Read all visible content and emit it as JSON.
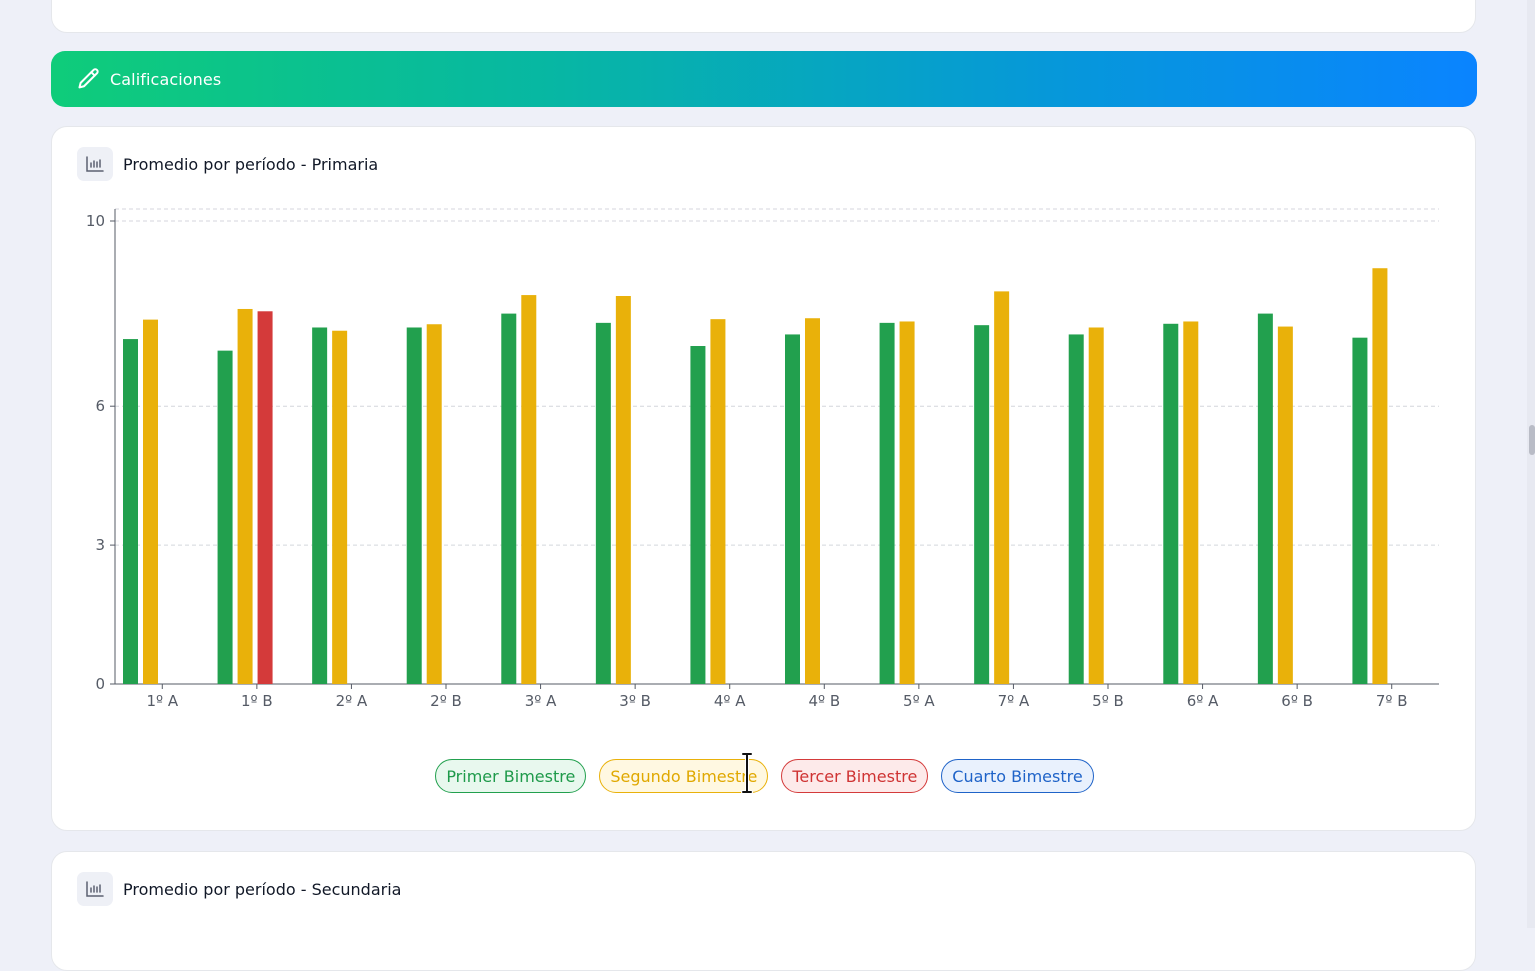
{
  "banner": {
    "title": "Calificaciones",
    "icon": "pencil-icon"
  },
  "chart_card": {
    "title": "Promedio por período - Primaria",
    "icon": "bar-chart-icon"
  },
  "second_card": {
    "title": "Promedio por período - Secundaria",
    "icon": "bar-chart-icon"
  },
  "chart_data": {
    "type": "bar",
    "title": "",
    "xlabel": "",
    "ylabel": "",
    "ylim": [
      0,
      10
    ],
    "yticks": [
      0,
      3,
      6,
      10
    ],
    "grid": true,
    "legend_position": "bottom",
    "categories": [
      "1º A",
      "1º B",
      "2º A",
      "2º B",
      "3º A",
      "3º B",
      "4º A",
      "4º B",
      "5º A",
      "7º A",
      "5º B",
      "6º A",
      "6º B",
      "7º B"
    ],
    "series": [
      {
        "name": "Primer Bimestre",
        "color": "#22a04e",
        "values": [
          7.45,
          7.2,
          7.7,
          7.7,
          8.0,
          7.8,
          7.3,
          7.55,
          7.8,
          7.75,
          7.55,
          7.78,
          8.0,
          7.48
        ]
      },
      {
        "name": "Segundo Bimestre",
        "color": "#e9b10a",
        "values": [
          7.87,
          8.1,
          7.63,
          7.77,
          8.4,
          8.38,
          7.88,
          7.9,
          7.83,
          8.48,
          7.7,
          7.83,
          7.72,
          8.98
        ]
      },
      {
        "name": "Tercer Bimestre",
        "color": "#d43a3a",
        "values": [
          null,
          8.05,
          null,
          null,
          null,
          null,
          null,
          null,
          null,
          null,
          null,
          null,
          null,
          null
        ]
      },
      {
        "name": "Cuarto Bimestre",
        "color": "#1f63c8",
        "values": [
          null,
          null,
          null,
          null,
          null,
          null,
          null,
          null,
          null,
          null,
          null,
          null,
          null,
          null
        ]
      }
    ]
  }
}
